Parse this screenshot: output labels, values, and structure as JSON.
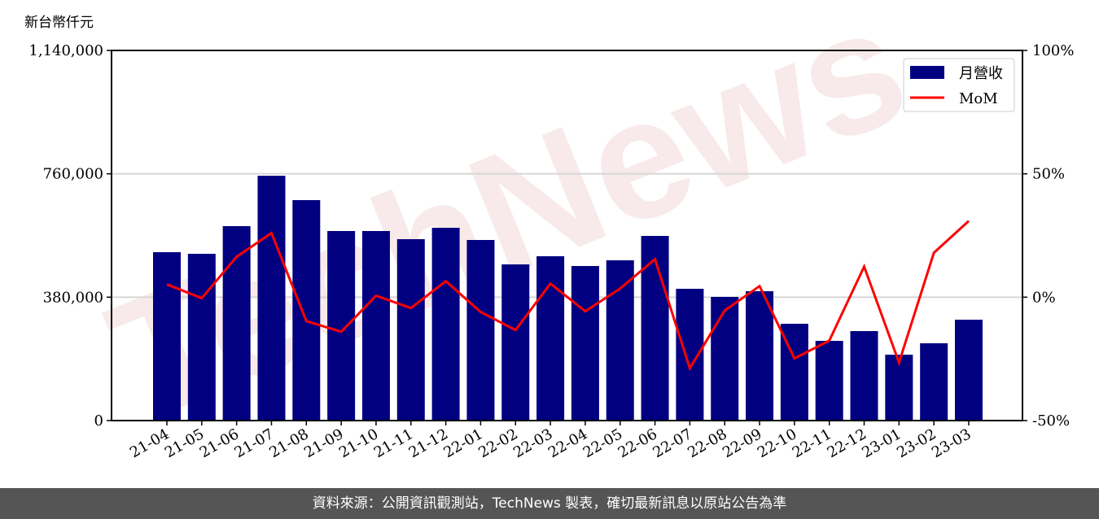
{
  "chart_data": {
    "type": "bar+line",
    "y_left_label": "新台幣仟元",
    "y_left_ticks": [
      "0",
      "380,000",
      "760,000",
      "1,140,000"
    ],
    "y_left_lim": [
      0,
      1140000
    ],
    "y_right_ticks": [
      "-50%",
      "0%",
      "50%",
      "100%"
    ],
    "y_right_lim": [
      -50,
      100
    ],
    "grid": "horizontal",
    "legend_position": "top-right",
    "categories": [
      "21-04",
      "21-05",
      "21-06",
      "21-07",
      "21-08",
      "21-09",
      "21-10",
      "21-11",
      "21-12",
      "22-01",
      "22-02",
      "22-03",
      "22-04",
      "22-05",
      "22-06",
      "22-07",
      "22-08",
      "22-09",
      "22-10",
      "22-11",
      "22-12",
      "23-01",
      "23-02",
      "23-03"
    ],
    "series": [
      {
        "name": "月營收",
        "type": "bar",
        "color": "#000080",
        "axis": "left",
        "values": [
          518600,
          513600,
          598800,
          754100,
          679000,
          583800,
          583800,
          558700,
          593800,
          556200,
          481000,
          506100,
          476000,
          493600,
          568700,
          405900,
          380800,
          398400,
          298100,
          245500,
          275600,
          202900,
          238000,
          310700
        ]
      },
      {
        "name": "MoM",
        "type": "line",
        "color": "#ff0000",
        "axis": "right",
        "values": [
          5.2,
          -0.4,
          16.4,
          26.0,
          -9.7,
          -14.0,
          0.6,
          -4.4,
          6.5,
          -6.0,
          -13.3,
          5.5,
          -5.7,
          3.5,
          15.4,
          -28.8,
          -5.4,
          4.5,
          -24.8,
          -17.6,
          12.4,
          -26.5,
          18.0,
          30.9
        ]
      }
    ]
  },
  "watermark": "TechNews",
  "footer": "資料來源：公開資訊觀測站，TechNews 製表，確切最新訊息以原站公告為準"
}
